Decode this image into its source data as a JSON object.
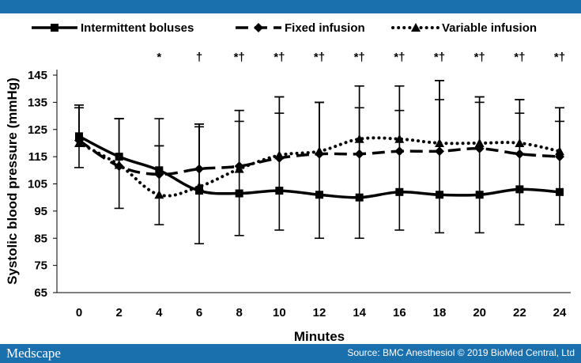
{
  "theme": {
    "bar_color": "#1a6fad",
    "line_color": "#000000"
  },
  "footer": {
    "brand": "Medscape",
    "source": "Source: BMC Anesthesiol © 2019 BioMed Central, Ltd"
  },
  "chart_data": {
    "type": "line",
    "title": "",
    "xlabel": "Minutes",
    "ylabel": "Systolic blood pressure (mmHg)",
    "x": [
      0,
      2,
      4,
      6,
      8,
      10,
      12,
      14,
      16,
      18,
      20,
      22,
      24
    ],
    "ylim": [
      65,
      145
    ],
    "yticks": [
      65,
      75,
      85,
      95,
      105,
      115,
      125,
      135,
      145
    ],
    "grid": false,
    "legend_position": "top",
    "series": [
      {
        "name": "Intermittent boluses",
        "style": "solid",
        "marker": "square",
        "values": [
          122.5,
          115,
          110,
          102.5,
          101.5,
          102.5,
          101,
          100,
          102,
          101,
          101,
          103,
          102
        ],
        "error_upper": [
          133,
          129,
          129,
          126,
          128,
          131,
          135,
          133,
          132,
          136,
          135,
          131,
          128
        ],
        "error_lower": [
          111,
          96,
          90,
          83,
          86,
          88,
          85,
          85,
          88,
          87,
          87,
          90,
          90
        ]
      },
      {
        "name": "Fixed infusion",
        "style": "dashed",
        "marker": "diamond",
        "values": [
          121,
          111.5,
          108.5,
          110.5,
          111.5,
          114.5,
          116,
          116,
          117,
          117,
          118,
          116,
          115
        ],
        "error_upper": [
          134,
          129,
          119,
          127,
          132,
          137,
          135,
          141,
          141,
          143,
          137,
          136,
          133
        ]
      },
      {
        "name": "Variable infusion",
        "style": "dotted",
        "marker": "triangle",
        "values": [
          120,
          112,
          101,
          104,
          110.5,
          115.5,
          117,
          121.5,
          121.5,
          120,
          120,
          120,
          117
        ],
        "error_upper": [
          134,
          129,
          119,
          127,
          132,
          137,
          135,
          141,
          141,
          143,
          137,
          136,
          133
        ]
      }
    ],
    "annotations": [
      {
        "x": 4,
        "text": "*"
      },
      {
        "x": 6,
        "text": "†"
      },
      {
        "x": 8,
        "text": "*†"
      },
      {
        "x": 10,
        "text": "*†"
      },
      {
        "x": 12,
        "text": "*†"
      },
      {
        "x": 14,
        "text": "*†"
      },
      {
        "x": 16,
        "text": "*†"
      },
      {
        "x": 18,
        "text": "*†"
      },
      {
        "x": 20,
        "text": "*†"
      },
      {
        "x": 22,
        "text": "*†"
      },
      {
        "x": 24,
        "text": "*†"
      }
    ]
  }
}
